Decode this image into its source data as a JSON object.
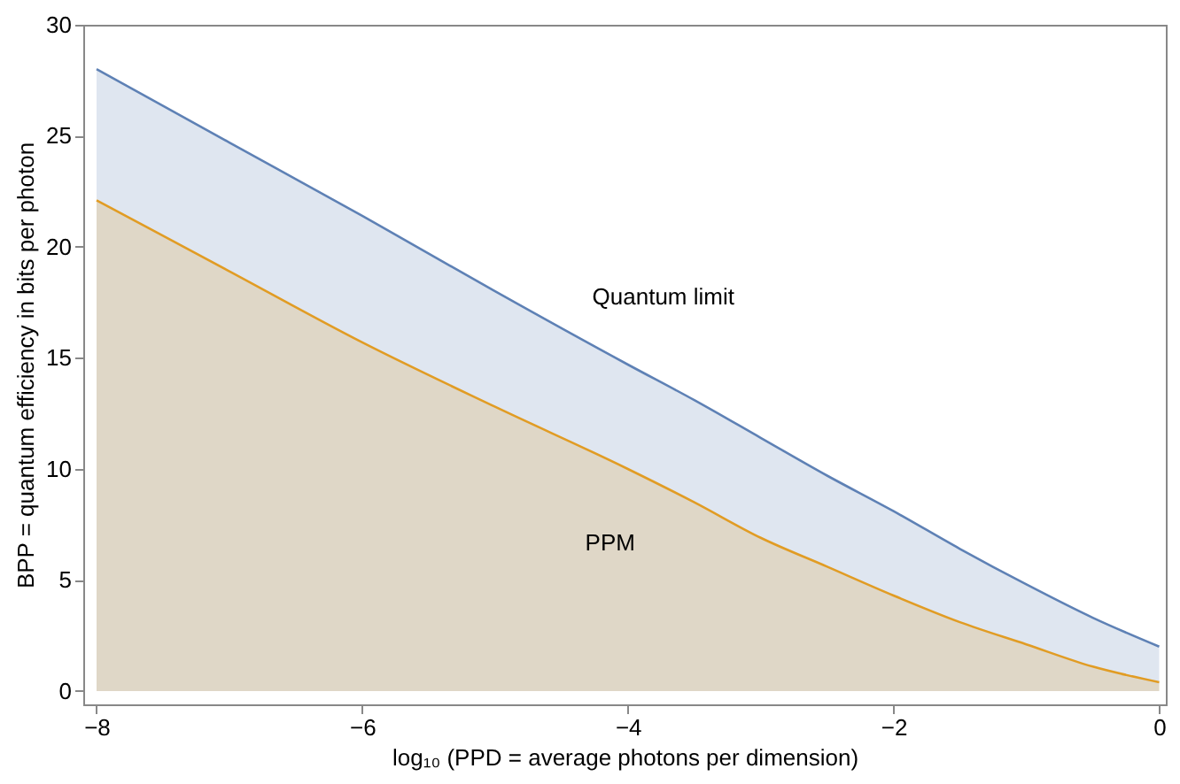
{
  "chart_data": {
    "type": "area",
    "xlabel": "log₁₀ (PPD = average photons per dimension)",
    "ylabel": "BPP = quantum efficiency in bits per photon",
    "x": [
      -8,
      -7,
      -6,
      -5,
      -4,
      -3.5,
      -3,
      -2.5,
      -2,
      -1.5,
      -1,
      -0.5,
      0
    ],
    "series": [
      {
        "name": "Quantum limit",
        "color": "#5e81b5",
        "values": [
          28.0,
          24.7,
          21.4,
          18.0,
          14.7,
          13.1,
          11.4,
          9.7,
          8.1,
          6.4,
          4.8,
          3.3,
          2.0
        ]
      },
      {
        "name": "PPM",
        "color": "#e19c24",
        "values": [
          22.1,
          18.9,
          15.7,
          12.8,
          10.0,
          8.5,
          6.9,
          5.6,
          4.3,
          3.1,
          2.1,
          1.1,
          0.4
        ]
      }
    ],
    "xlim": [
      -8.1,
      0.05
    ],
    "ylim": [
      -0.6,
      30
    ],
    "xticks": [
      -8,
      -6,
      -4,
      -2,
      0
    ],
    "yticks": [
      0,
      5,
      10,
      15,
      20,
      25,
      30
    ],
    "grid": false
  }
}
